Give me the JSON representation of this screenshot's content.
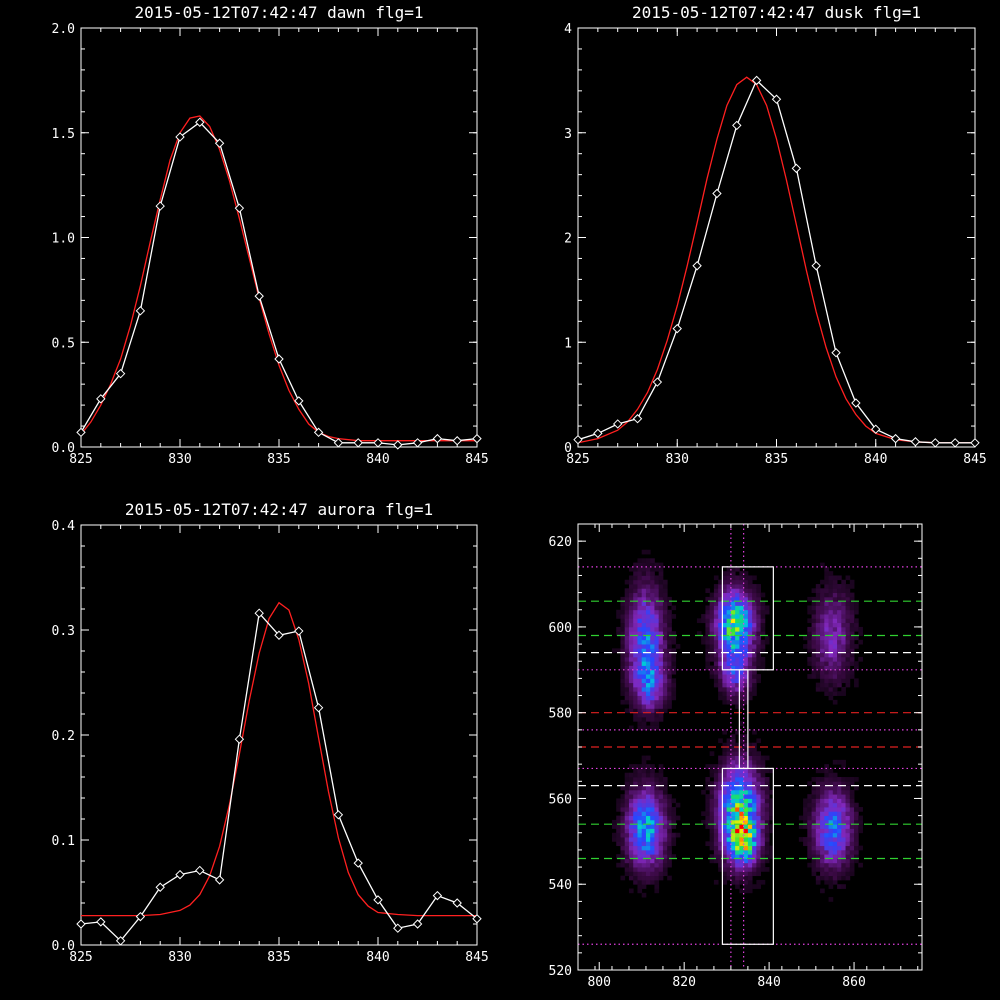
{
  "chart_data": [
    {
      "type": "line",
      "title": "2015-05-12T07:42:47 dawn flg=1",
      "xlim": [
        825,
        845
      ],
      "ylim": [
        0,
        2.0
      ],
      "xticks": [
        825,
        830,
        835,
        840,
        845
      ],
      "xtick_labels": [
        "825",
        "830",
        "835",
        "840",
        "845"
      ],
      "yticks": [
        0,
        0.5,
        1.0,
        1.5,
        2.0
      ],
      "ytick_labels": [
        "0.0",
        "0.5",
        "1.0",
        "1.5",
        "2.0"
      ],
      "series": [
        {
          "kind": "data",
          "color": "#ffffff",
          "marker": "diamond",
          "x": [
            825,
            826,
            827,
            828,
            829,
            830,
            831,
            832,
            833,
            834,
            835,
            836,
            837,
            838,
            839,
            840,
            841,
            842,
            843,
            844,
            845
          ],
          "y": [
            0.07,
            0.23,
            0.35,
            0.65,
            1.15,
            1.48,
            1.55,
            1.45,
            1.14,
            0.72,
            0.42,
            0.22,
            0.07,
            0.02,
            0.02,
            0.02,
            0.01,
            0.02,
            0.04,
            0.03,
            0.04
          ]
        },
        {
          "kind": "fit",
          "color": "#ff2020",
          "x": [
            825,
            825.5,
            826,
            826.5,
            827,
            827.5,
            828,
            828.5,
            829,
            829.5,
            830,
            830.5,
            831,
            831.5,
            832,
            832.5,
            833,
            833.5,
            834,
            834.5,
            835,
            835.5,
            836,
            836.5,
            837,
            837.5,
            838,
            839,
            840,
            841,
            842,
            843,
            844,
            845
          ],
          "y": [
            0.06,
            0.12,
            0.2,
            0.3,
            0.42,
            0.58,
            0.77,
            0.98,
            1.18,
            1.37,
            1.5,
            1.57,
            1.58,
            1.53,
            1.42,
            1.27,
            1.09,
            0.9,
            0.71,
            0.54,
            0.39,
            0.27,
            0.18,
            0.11,
            0.07,
            0.05,
            0.04,
            0.03,
            0.03,
            0.03,
            0.03,
            0.03,
            0.03,
            0.03
          ]
        }
      ]
    },
    {
      "type": "line",
      "title": "2015-05-12T07:42:47 dusk flg=1",
      "xlim": [
        825,
        845
      ],
      "ylim": [
        0,
        4
      ],
      "xticks": [
        825,
        830,
        835,
        840,
        845
      ],
      "xtick_labels": [
        "825",
        "830",
        "835",
        "840",
        "845"
      ],
      "yticks": [
        0,
        1,
        2,
        3,
        4
      ],
      "ytick_labels": [
        "0",
        "1",
        "2",
        "3",
        "4"
      ],
      "series": [
        {
          "kind": "data",
          "color": "#ffffff",
          "marker": "diamond",
          "x": [
            825,
            826,
            827,
            828,
            829,
            830,
            831,
            832,
            833,
            834,
            835,
            836,
            837,
            838,
            839,
            840,
            841,
            842,
            843,
            844,
            845
          ],
          "y": [
            0.07,
            0.13,
            0.22,
            0.27,
            0.62,
            1.13,
            1.73,
            2.42,
            3.07,
            3.5,
            3.32,
            2.66,
            1.73,
            0.9,
            0.42,
            0.17,
            0.08,
            0.05,
            0.04,
            0.04,
            0.04
          ]
        },
        {
          "kind": "fit",
          "color": "#ff2020",
          "x": [
            825,
            826,
            827,
            827.5,
            828,
            828.5,
            829,
            829.5,
            830,
            830.5,
            831,
            831.5,
            832,
            832.5,
            833,
            833.5,
            834,
            834.5,
            835,
            835.5,
            836,
            836.5,
            837,
            837.5,
            838,
            838.5,
            839,
            839.5,
            840,
            841,
            842,
            843,
            844,
            845
          ],
          "y": [
            0.04,
            0.08,
            0.16,
            0.24,
            0.36,
            0.52,
            0.74,
            1.02,
            1.35,
            1.73,
            2.14,
            2.56,
            2.94,
            3.26,
            3.46,
            3.53,
            3.46,
            3.26,
            2.94,
            2.55,
            2.12,
            1.69,
            1.29,
            0.95,
            0.67,
            0.46,
            0.31,
            0.2,
            0.13,
            0.07,
            0.05,
            0.04,
            0.04,
            0.04
          ]
        }
      ]
    },
    {
      "type": "line",
      "title": "2015-05-12T07:42:47 aurora flg=1",
      "xlim": [
        825,
        845
      ],
      "ylim": [
        0,
        0.4
      ],
      "xticks": [
        825,
        830,
        835,
        840,
        845
      ],
      "xtick_labels": [
        "825",
        "830",
        "835",
        "840",
        "845"
      ],
      "yticks": [
        0,
        0.1,
        0.2,
        0.3,
        0.4
      ],
      "ytick_labels": [
        "0.0",
        "0.1",
        "0.2",
        "0.3",
        "0.4"
      ],
      "series": [
        {
          "kind": "data",
          "color": "#ffffff",
          "marker": "diamond",
          "x": [
            825,
            826,
            827,
            828,
            829,
            830,
            831,
            832,
            833,
            834,
            835,
            836,
            837,
            838,
            839,
            840,
            841,
            842,
            843,
            844,
            845
          ],
          "y": [
            0.02,
            0.022,
            0.004,
            0.027,
            0.055,
            0.067,
            0.071,
            0.062,
            0.196,
            0.316,
            0.295,
            0.299,
            0.226,
            0.124,
            0.078,
            0.043,
            0.016,
            0.02,
            0.047,
            0.04,
            0.025
          ]
        },
        {
          "kind": "fit",
          "color": "#ff2020",
          "x": [
            825,
            826,
            827,
            828,
            829,
            830,
            830.5,
            831,
            831.5,
            832,
            832.5,
            833,
            833.5,
            834,
            834.5,
            835,
            835.5,
            836,
            836.5,
            837,
            837.5,
            838,
            838.5,
            839,
            839.5,
            840,
            841,
            842,
            843,
            844,
            845
          ],
          "y": [
            0.028,
            0.028,
            0.028,
            0.028,
            0.029,
            0.033,
            0.038,
            0.048,
            0.066,
            0.094,
            0.134,
            0.182,
            0.233,
            0.278,
            0.311,
            0.326,
            0.319,
            0.291,
            0.249,
            0.197,
            0.146,
            0.102,
            0.069,
            0.048,
            0.037,
            0.031,
            0.029,
            0.028,
            0.028,
            0.028,
            0.028
          ]
        }
      ]
    },
    {
      "type": "heatmap",
      "title": "",
      "xlim": [
        795,
        876
      ],
      "ylim": [
        520,
        624
      ],
      "xticks": [
        800,
        820,
        840,
        860
      ],
      "xtick_labels": [
        "800",
        "820",
        "840",
        "860"
      ],
      "yticks": [
        520,
        540,
        560,
        580,
        600,
        620
      ],
      "ytick_labels": [
        "520",
        "540",
        "560",
        "580",
        "600",
        "620"
      ],
      "blobs": [
        {
          "x": 811,
          "y": 597,
          "sx": 2.8,
          "sy": 8,
          "peak": 0.45
        },
        {
          "x": 812,
          "y": 587,
          "sx": 2.5,
          "sy": 4,
          "peak": 0.3
        },
        {
          "x": 811,
          "y": 553,
          "sx": 3,
          "sy": 6,
          "peak": 0.55
        },
        {
          "x": 832,
          "y": 601,
          "sx": 3,
          "sy": 5,
          "peak": 0.7
        },
        {
          "x": 832,
          "y": 590,
          "sx": 2.5,
          "sy": 4,
          "peak": 0.35
        },
        {
          "x": 833,
          "y": 557,
          "sx": 3.2,
          "sy": 7,
          "peak": 0.7
        },
        {
          "x": 834,
          "y": 550,
          "sx": 2.2,
          "sy": 3.5,
          "peak": 0.5
        },
        {
          "x": 855,
          "y": 598,
          "sx": 3,
          "sy": 7,
          "peak": 0.25
        },
        {
          "x": 855,
          "y": 553,
          "sx": 3,
          "sy": 6,
          "peak": 0.45
        }
      ],
      "hlines": [
        {
          "y": 614,
          "color": "#e040e0",
          "style": "dotted"
        },
        {
          "y": 606,
          "color": "#30d030",
          "style": "dashed"
        },
        {
          "y": 598,
          "color": "#30d030",
          "style": "dashed"
        },
        {
          "y": 594,
          "color": "#ffffff",
          "style": "dashed"
        },
        {
          "y": 590,
          "color": "#e040e0",
          "style": "dotted"
        },
        {
          "y": 580,
          "color": "#e02020",
          "style": "dashed"
        },
        {
          "y": 576,
          "color": "#e040e0",
          "style": "dotted"
        },
        {
          "y": 572,
          "color": "#e02020",
          "style": "dashed"
        },
        {
          "y": 567,
          "color": "#e040e0",
          "style": "dotted"
        },
        {
          "y": 563,
          "color": "#ffffff",
          "style": "dashed"
        },
        {
          "y": 554,
          "color": "#30d030",
          "style": "dashed"
        },
        {
          "y": 546,
          "color": "#30d030",
          "style": "dashed"
        },
        {
          "y": 526,
          "color": "#e040e0",
          "style": "dotted"
        }
      ],
      "vlines": [
        {
          "x": 831,
          "color": "#e040e0",
          "style": "dotted"
        },
        {
          "x": 834,
          "color": "#e040e0",
          "style": "dotted"
        }
      ],
      "rects": [
        {
          "x0": 829,
          "x1": 841,
          "y0": 590,
          "y1": 614
        },
        {
          "x0": 833,
          "x1": 835,
          "y0": 567,
          "y1": 590
        },
        {
          "x0": 829,
          "x1": 841,
          "y0": 526,
          "y1": 567
        }
      ]
    }
  ]
}
